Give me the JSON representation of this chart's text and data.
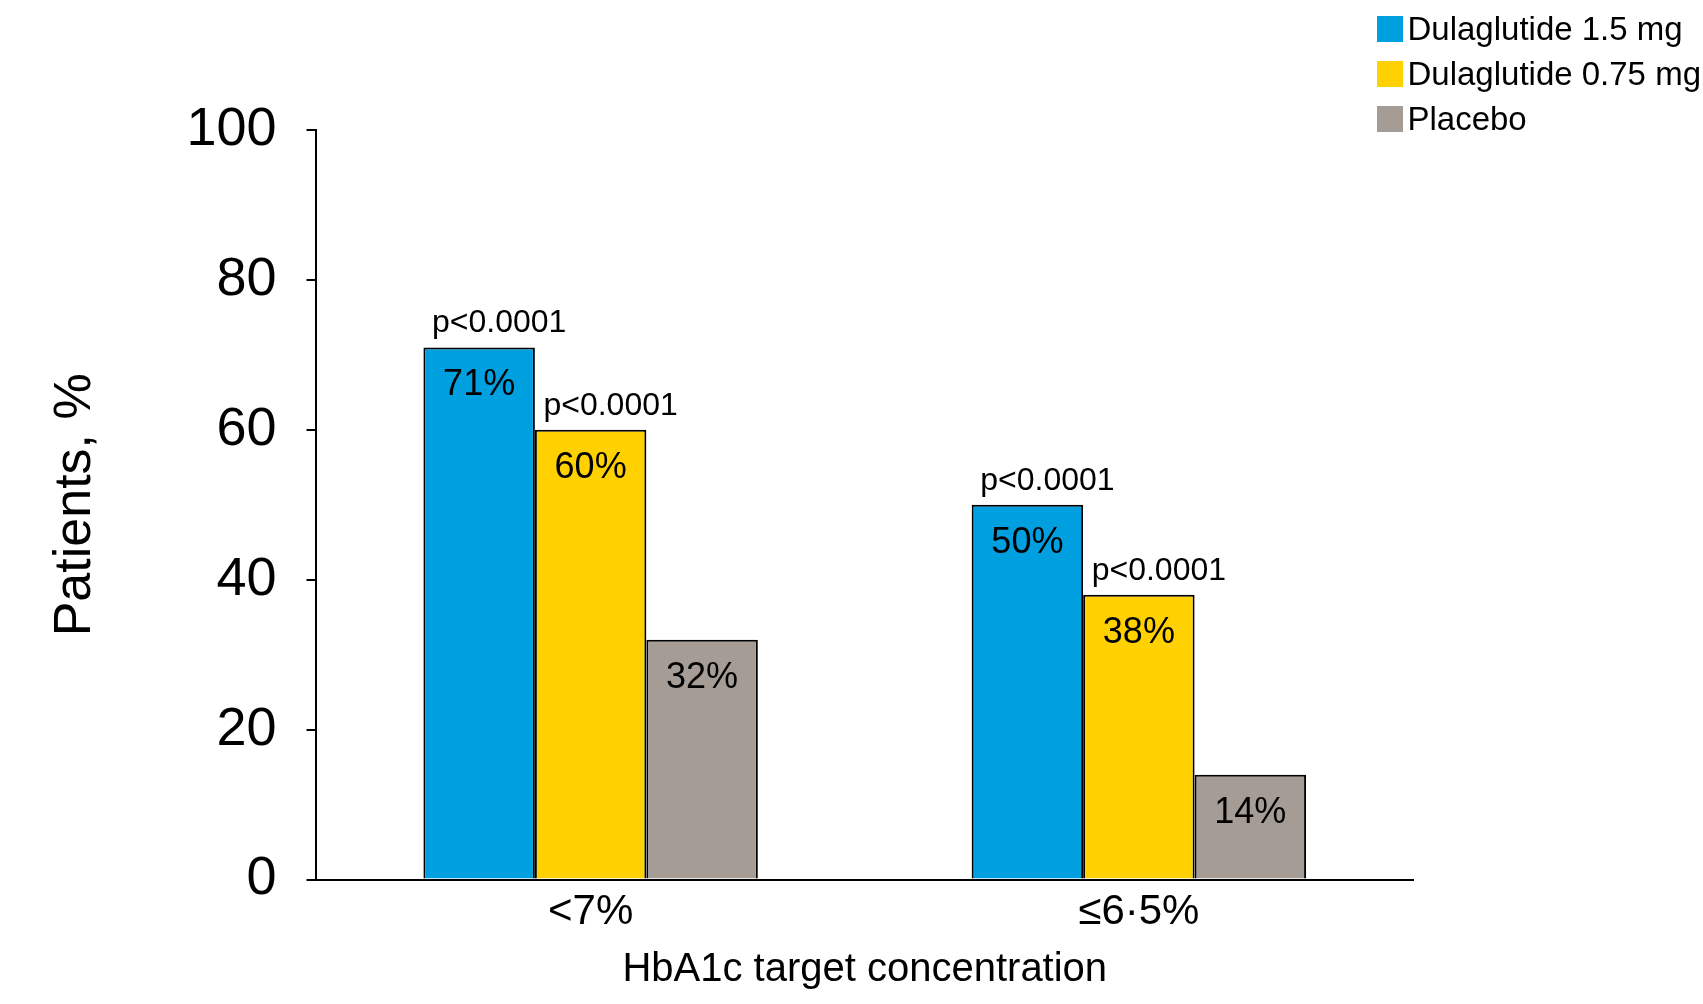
{
  "chart_data": {
    "type": "bar",
    "xlabel": "HbA1c target concentration",
    "ylabel": "Patients, %",
    "categories": [
      "<7%",
      "≤6·5%"
    ],
    "series": [
      {
        "name": "Dulaglutide 1.5 mg",
        "color": "#009fdf",
        "values": [
          71,
          50
        ],
        "value_labels": [
          "71%",
          "50%"
        ]
      },
      {
        "name": "Dulaglutide 0.75 mg",
        "color": "#ffd100",
        "values": [
          60,
          38
        ],
        "value_labels": [
          "60%",
          "38%"
        ]
      },
      {
        "name": "Placebo",
        "color": "#a59d95",
        "values": [
          32,
          14
        ],
        "value_labels": [
          "32%",
          "14%"
        ]
      }
    ],
    "annotations": [
      "p<0.0001",
      "p<0.0001",
      "p<0.0001",
      "p<0.0001"
    ],
    "ylim": [
      0,
      100
    ],
    "yticks": [
      0,
      20,
      40,
      60,
      80,
      100
    ],
    "grid": false,
    "legend": "top right"
  }
}
